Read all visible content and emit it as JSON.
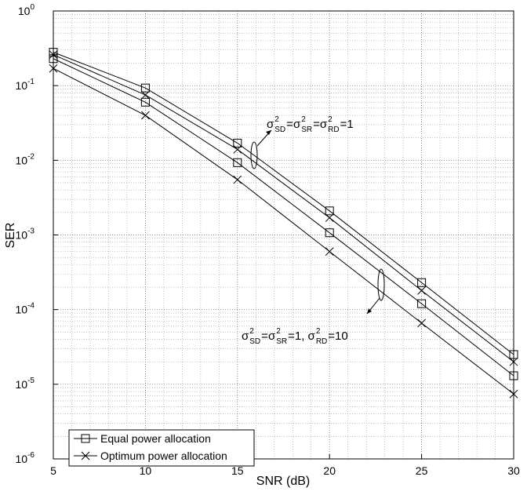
{
  "chart_data": {
    "type": "line",
    "log_y": true,
    "grid": true,
    "x_label": "SNR (dB)",
    "y_label": "SER",
    "x": [
      5,
      10,
      15,
      20,
      25,
      30
    ],
    "xlim": [
      5,
      30
    ],
    "xticks": [
      5,
      10,
      15,
      20,
      25,
      30
    ],
    "ylim": [
      1e-06,
      1
    ],
    "yticks": [
      {
        "value": 1,
        "label": [
          "10",
          "0"
        ]
      },
      {
        "value": 0.1,
        "label": [
          "10",
          "-1"
        ]
      },
      {
        "value": 0.01,
        "label": [
          "10",
          "-2"
        ]
      },
      {
        "value": 0.001,
        "label": [
          "10",
          "-3"
        ]
      },
      {
        "value": 0.0001,
        "label": [
          "10",
          "-4"
        ]
      },
      {
        "value": 1e-05,
        "label": [
          "10",
          "-5"
        ]
      },
      {
        "value": 1e-06,
        "label": [
          "10",
          "-6"
        ]
      }
    ],
    "legend": "lower left",
    "series": [
      {
        "name": "Equal power allocation",
        "marker": "square",
        "color": "#000000",
        "curves": [
          [
            0.28,
            0.093,
            0.017,
            0.0021,
            0.00023,
            2.5e-05
          ],
          [
            0.23,
            0.06,
            0.0093,
            0.00107,
            0.00012,
            1.3e-05
          ]
        ]
      },
      {
        "name": "Optimum power allocation",
        "marker": "x",
        "color": "#000000",
        "curves": [
          [
            0.26,
            0.075,
            0.014,
            0.0017,
            0.00018,
            2e-05
          ],
          [
            0.17,
            0.04,
            0.0055,
            0.0006,
            6.6e-05,
            7.4e-06
          ]
        ]
      }
    ],
    "annotations": [
      {
        "parts": [
          [
            "σ",
            "2",
            "SD"
          ],
          "=",
          [
            "σ",
            "2",
            "SR"
          ],
          "=",
          [
            "σ",
            "2",
            "RD"
          ],
          "=1"
        ]
      },
      {
        "parts": [
          [
            "σ",
            "2",
            "SD"
          ],
          "=",
          [
            "σ",
            "2",
            "SR"
          ],
          "=1, ",
          [
            "σ",
            "2",
            "RD"
          ],
          "=10"
        ]
      }
    ]
  }
}
